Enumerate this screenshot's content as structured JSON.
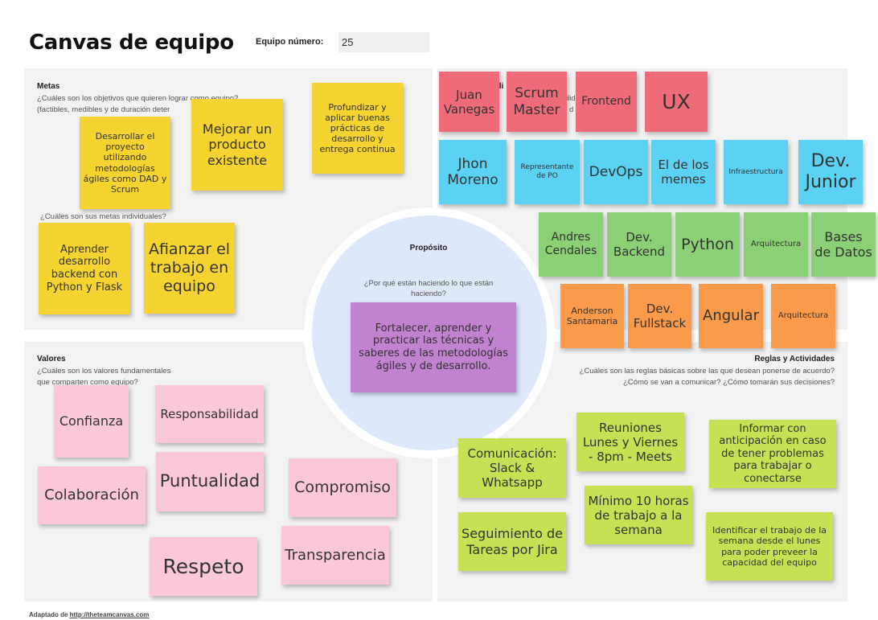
{
  "header": {
    "title": "Canvas de equipo",
    "team_label": "Equipo número:",
    "team_number": "25"
  },
  "goals": {
    "title": "Metas",
    "question1": "¿Cuáles son los objetivos que quieren  lograr como equipo?",
    "question1b": "(factibles, medibles y de duración deter",
    "question2": "¿Cuáles son sus metas individuales?",
    "notes": [
      "Desarrollar el proyecto utilizando metodologías ágiles como DAD y Scrum",
      "Mejorar un producto existente",
      "Profundizar y aplicar buenas prácticas de desarrollo y entrega continua",
      "Aprender desarrollo backend con Python y Flask",
      "Afianzar el trabajo en equipo"
    ]
  },
  "roles": {
    "title_fragment": "ili",
    "q_fragment1": "ilid",
    "q_fragment2": "d",
    "row1": [
      "Juan Vanegas",
      "Scrum Master",
      "Frontend",
      "UX"
    ],
    "row2": [
      "Jhon Moreno",
      "Representante de PO",
      "DevOps",
      "El de los memes",
      "Infraestructura",
      "Dev. Junior"
    ],
    "row3": [
      "Andres Cendales",
      "Dev. Backend",
      "Python",
      "Arquitectura",
      "Bases de Datos"
    ],
    "row4": [
      "Anderson Santamaria",
      "Dev. Fullstack",
      "Angular",
      "Arquitectura"
    ]
  },
  "purpose": {
    "title": "Propósito",
    "question": "¿Por qué están haciendo lo que están haciendo?",
    "note": "Fortalecer, aprender y practicar las técnicas y saberes de las metodologías ágiles y de desarrollo."
  },
  "values": {
    "title": "Valores",
    "question1": "¿Cuáles son los valores fundamentales",
    "question2": "que comparten como equipo?",
    "notes": [
      "Confianza",
      "Responsabilidad",
      "Colaboración",
      "Puntualidad",
      "Compromiso",
      "Respeto",
      "Transparencia"
    ]
  },
  "rules": {
    "title": "Reglas y Actividades",
    "question1": "¿Cuáles son las reglas básicas sobre las que desean ponerse de acuerdo?",
    "question2": "¿Cómo se van a comunicar? ¿Cómo tomarán sus decisiones?",
    "notes": [
      "Reuniones Lunes y Viernes - 8pm - Meets",
      "Informar con anticipación en caso de tener problemas para trabajar o conectarse",
      "Comunicación: Slack & Whatsapp",
      "Mínimo 10 horas de trabajo a la semana",
      "Seguimiento de Tareas por Jira",
      "Identificar el trabajo de la semana desde el lunes para poder preveer la capacidad del equipo"
    ]
  },
  "footer": {
    "prefix": "Adaptado de ",
    "link": "http://theteamcanvas.com"
  }
}
